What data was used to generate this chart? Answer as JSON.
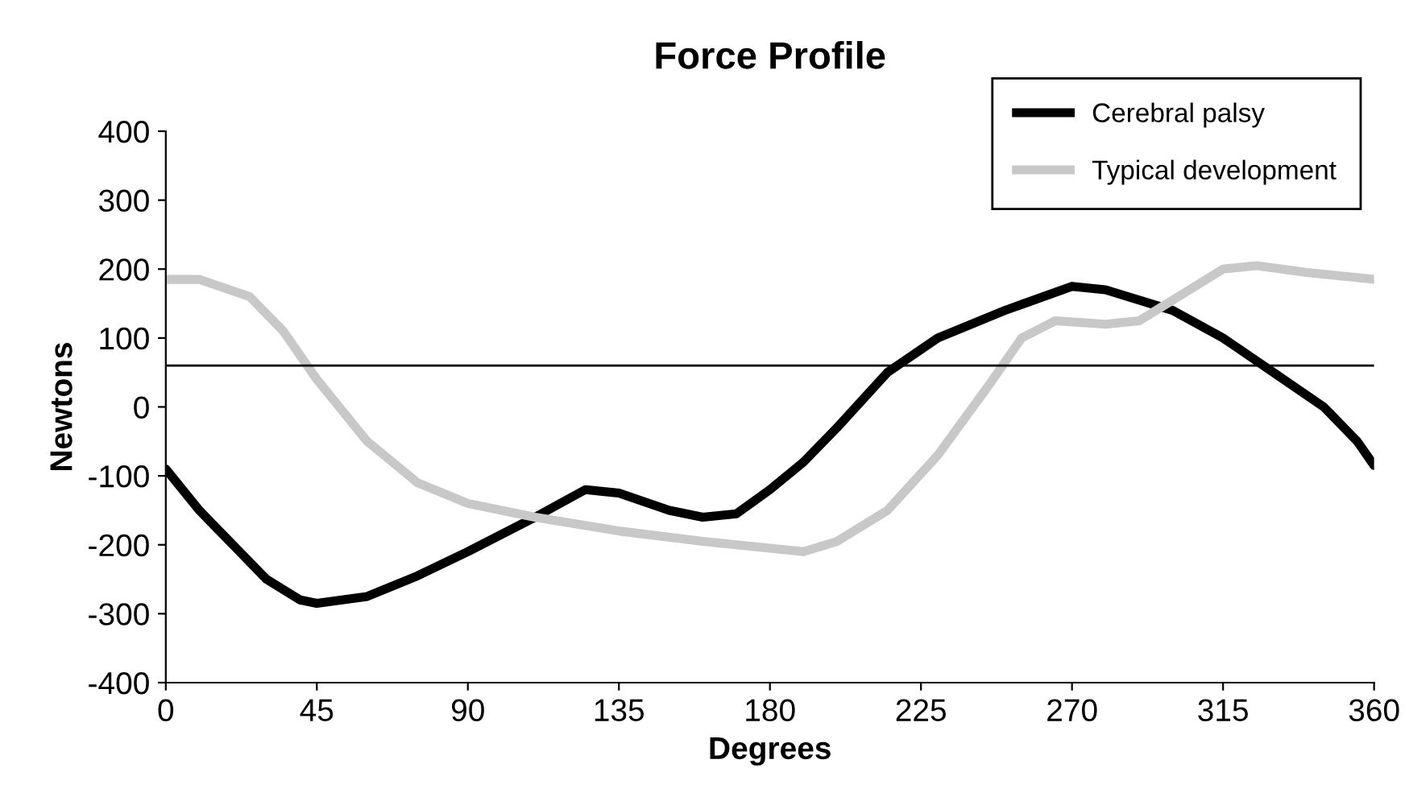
{
  "chart_data": {
    "type": "line",
    "title": "Force Profile",
    "xlabel": "Degrees",
    "ylabel": "Newtons",
    "xlim": [
      0,
      360
    ],
    "xticks": [
      0,
      45,
      90,
      135,
      180,
      225,
      270,
      315,
      360
    ],
    "ylim": [
      -400,
      400
    ],
    "yticks": [
      -400,
      -300,
      -200,
      -100,
      0,
      100,
      200,
      300,
      400
    ],
    "grid": false,
    "legend": "top right",
    "marker": "none",
    "line_style": "solid",
    "ref_lines": [
      {
        "axis": "y",
        "value": 60,
        "label": null,
        "color": "#000000"
      }
    ],
    "series": [
      {
        "name": "Cerebral palsy",
        "color": "#000000",
        "x": [
          0,
          10,
          20,
          30,
          40,
          45,
          60,
          75,
          90,
          110,
          125,
          135,
          150,
          160,
          170,
          180,
          190,
          200,
          215,
          230,
          250,
          270,
          280,
          300,
          315,
          330,
          345,
          355,
          360
        ],
        "values": [
          -90,
          -150,
          -200,
          -250,
          -280,
          -285,
          -275,
          -245,
          -210,
          -160,
          -120,
          -125,
          -150,
          -160,
          -155,
          -120,
          -80,
          -30,
          50,
          100,
          140,
          175,
          170,
          140,
          100,
          50,
          0,
          -50,
          -85
        ]
      },
      {
        "name": "Typical development",
        "color": "#c8c8c8",
        "x": [
          0,
          10,
          25,
          35,
          45,
          60,
          75,
          90,
          110,
          135,
          160,
          180,
          190,
          200,
          215,
          230,
          245,
          255,
          265,
          280,
          290,
          305,
          315,
          325,
          340,
          360
        ],
        "values": [
          185,
          185,
          160,
          110,
          40,
          -50,
          -110,
          -140,
          -160,
          -180,
          -195,
          -205,
          -210,
          -195,
          -150,
          -70,
          30,
          100,
          125,
          120,
          125,
          170,
          200,
          205,
          195,
          185
        ]
      }
    ]
  }
}
